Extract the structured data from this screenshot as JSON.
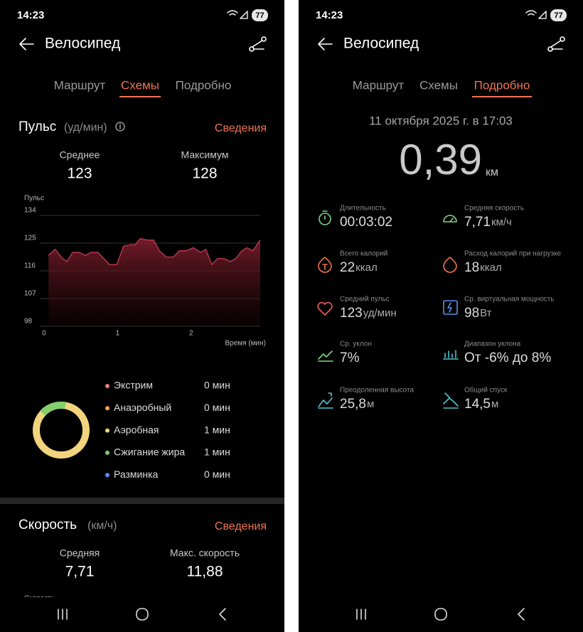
{
  "left_screen": {
    "status_bar": {
      "time": "14:23",
      "battery": "77"
    },
    "header": {
      "title": "Велосипед"
    },
    "tabs": [
      "Маршрут",
      "Схемы",
      "Подробно"
    ],
    "pulse_section": {
      "title": "Пульс",
      "unit": "(уд/мин)",
      "link": "Сведения",
      "stats": [
        {
          "label": "Среднее",
          "value": "123"
        },
        {
          "label": "Максимум",
          "value": "128"
        }
      ],
      "chart_data": {
        "type": "area",
        "y_label": "Пульс",
        "x_label": "Время (мин)",
        "color": "#b3364b",
        "x": [
          0.06,
          0.15,
          0.25,
          0.31,
          0.39,
          0.48,
          0.56,
          0.64,
          0.73,
          0.81,
          0.89,
          0.99,
          1.08,
          1.18,
          1.24,
          1.31,
          1.41,
          1.49,
          1.57,
          1.66,
          1.76,
          1.84,
          1.93,
          2.03,
          2.13,
          2.2,
          2.28,
          2.36,
          2.45,
          2.53,
          2.61,
          2.69,
          2.76,
          2.84,
          2.94
        ],
        "values": [
          121,
          123,
          120,
          119,
          122,
          122,
          121,
          122,
          122,
          120,
          118,
          118,
          124,
          124.5,
          124.5,
          126.5,
          126,
          126,
          122.5,
          120.5,
          120.5,
          122.5,
          122.5,
          123.5,
          122,
          123,
          118,
          120,
          120,
          119,
          120,
          122.5,
          123.5,
          122.5,
          126
        ],
        "xlim": [
          0,
          2.94
        ],
        "ylim": [
          98,
          134
        ],
        "xticks": [
          0,
          1,
          2
        ],
        "yticks": [
          98,
          107,
          116,
          125,
          134
        ],
        "grid": true
      }
    },
    "zones": [
      {
        "name": "Экстрим",
        "duration": "0 мин",
        "color": "#ee7f76"
      },
      {
        "name": "Анаэробный",
        "duration": "0 мин",
        "color": "#f0a060"
      },
      {
        "name": "Аэробная",
        "duration": "1 мин",
        "color": "#f1d47d"
      },
      {
        "name": "Сжигание жира",
        "duration": "1 мин",
        "color": "#83cf6e"
      },
      {
        "name": "Разминка",
        "duration": "0 мин",
        "color": "#5f8ff0"
      }
    ],
    "speed_section": {
      "title": "Скорость",
      "unit": "(км/ч)",
      "link": "Сведения",
      "stats": [
        {
          "label": "Средняя",
          "value": "7,71"
        },
        {
          "label": "Макс. скорость",
          "value": "11,88"
        }
      ],
      "chart_label": "Скорость"
    }
  },
  "right_screen": {
    "status_bar": {
      "time": "14:23",
      "battery": "77"
    },
    "header": {
      "title": "Велосипед"
    },
    "tabs": [
      "Маршрут",
      "Схемы",
      "Подробно"
    ],
    "date": "11 октября 2025 г. в 17:03",
    "distance": {
      "value": "0,39",
      "unit": "км"
    },
    "metrics": [
      {
        "label": "Длительность",
        "value": "00:03:02"
      },
      {
        "label": "Средняя скорость",
        "value": "7,71",
        "unit": "км/ч"
      },
      {
        "label": "Всего калорий",
        "value": "22",
        "unit": "ккал"
      },
      {
        "label": "Расход калорий при нагрузке",
        "value": "18",
        "unit": "ккал"
      },
      {
        "label": "Средний пульс",
        "value": "123",
        "unit": "уд/мин"
      },
      {
        "label": "Ср. виртуальная мощность",
        "value": "98",
        "unit": "Вт"
      },
      {
        "label": "Ср. уклон",
        "value": "7%"
      },
      {
        "label": "Диапазон уклона",
        "value": "От -6% до 8%"
      },
      {
        "label": "Преодоленная высота",
        "value": "25,8",
        "unit": "м"
      },
      {
        "label": "Общий спуск",
        "value": "14,5",
        "unit": "м"
      }
    ]
  }
}
